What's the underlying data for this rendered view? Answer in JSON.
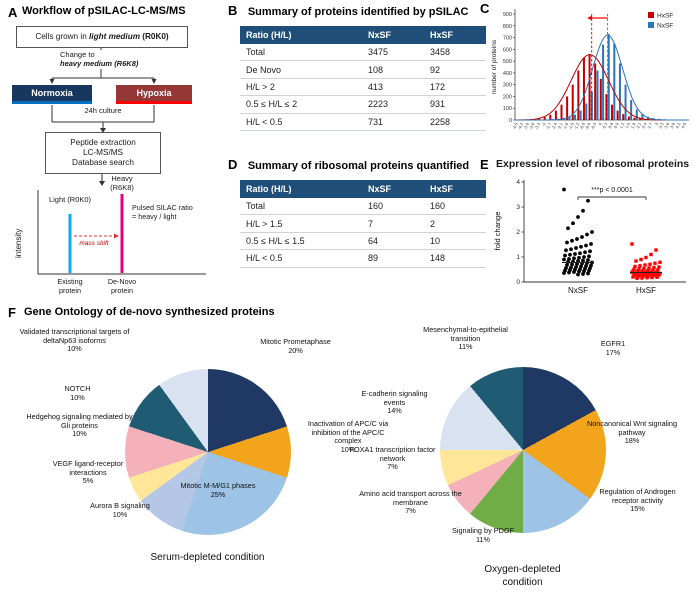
{
  "panels": {
    "a": {
      "tag": "A",
      "title": "Workflow of pSILAC-LC-MS/MS",
      "cells_pre": "Cells grown in ",
      "cells_em": "light medium",
      "cells_post": " (R0K0)",
      "change_line1": "Change to",
      "change_line2": "heavy medium (R6K8)",
      "normoxia": "Normoxia",
      "hypoxia": "Hypoxia",
      "culture": "24h culture",
      "peptide_line1": "Peptide extraction",
      "peptide_line2": "LC-MS/MS",
      "peptide_line3": "Database search",
      "intensity": "intensity",
      "light_peak": "Light (R0K0)",
      "heavy_peak": "Heavy (R6K8)",
      "ratio_line1": "Pulsed SILAC ratio",
      "ratio_line2": "= heavy / light",
      "mass_shift": "mass shift",
      "existing": "Existing protein",
      "denovo": "De-Novo protein"
    },
    "b": {
      "tag": "B",
      "title": "Summary of proteins identified by pSILAC",
      "table": {
        "headers": [
          "Ratio (H/L)",
          "NxSF",
          "HxSF"
        ],
        "rows": [
          [
            "Total",
            "3475",
            "3458"
          ],
          [
            "De Novo",
            "108",
            "92"
          ],
          [
            "H/L > 2",
            "413",
            "172"
          ],
          [
            "0.5 ≤ H/L ≤ 2",
            "2223",
            "931"
          ],
          [
            "H/L < 0.5",
            "731",
            "2258"
          ]
        ]
      }
    },
    "c": {
      "tag": "C"
    },
    "d": {
      "tag": "D",
      "title": "Summary of ribosomal proteins quantified",
      "table": {
        "headers": [
          "Ratio (H/L)",
          "NxSF",
          "HxSF"
        ],
        "rows": [
          [
            "Total",
            "160",
            "160"
          ],
          [
            "H/L > 1.5",
            "7",
            "2"
          ],
          [
            "0.5 ≤ H/L ≤ 1.5",
            "64",
            "10"
          ],
          [
            "H/L < 0.5",
            "89",
            "148"
          ]
        ]
      }
    },
    "e": {
      "tag": "E",
      "title": "Expression level of ribosomal proteins"
    },
    "f": {
      "tag": "F",
      "title": "Gene Ontology of de-novo synthesized proteins"
    }
  },
  "chart_data": [
    {
      "id": "panel-c-histogram",
      "type": "bar",
      "ylabel": "number of proteins",
      "ylim": [
        0,
        900
      ],
      "ytick_step": 100,
      "categories": [
        "-4.5",
        "-4.2",
        "-3.9",
        "-3.6",
        "-3.3",
        "-3",
        "-2.7",
        "-2.4",
        "-2.1",
        "-1.8",
        "-1.5",
        "-1.2",
        "-0.9",
        "-0.6",
        "-0.3",
        "0",
        "0.3",
        "0.6",
        "0.9",
        "1.2",
        "1.5",
        "1.8",
        "2.1",
        "2.4",
        "2.7",
        "3",
        "3.3",
        "3.6",
        "3.9",
        "4.2",
        "4.5"
      ],
      "series": [
        {
          "name": "HxSF",
          "color": "#c00000",
          "values": [
            2,
            3,
            5,
            8,
            14,
            25,
            45,
            80,
            130,
            200,
            300,
            420,
            530,
            560,
            480,
            350,
            220,
            130,
            80,
            50,
            30,
            20,
            12,
            8,
            5,
            4,
            3,
            2,
            2,
            1,
            1
          ]
        },
        {
          "name": "NxSF",
          "color": "#2e75b6",
          "values": [
            1,
            1,
            2,
            2,
            3,
            5,
            8,
            12,
            18,
            28,
            45,
            80,
            140,
            240,
            420,
            640,
            730,
            650,
            480,
            300,
            170,
            90,
            50,
            28,
            16,
            10,
            6,
            4,
            3,
            2,
            1
          ]
        }
      ],
      "fits": [
        {
          "name": "HxSF",
          "color": "#c00000",
          "mean": -0.65,
          "sd": 1.0,
          "peak": 555
        },
        {
          "name": "NxSF",
          "color": "#2e75b6",
          "mean": 0.3,
          "sd": 0.8,
          "peak": 720
        }
      ],
      "annotations": {
        "dashed_lines": [
          {
            "x": -0.55,
            "color": "#c00000"
          },
          {
            "x": 0.3,
            "color": "#2e75b6"
          }
        ],
        "arrow": {
          "from_x": 0.3,
          "to_x": -0.8,
          "color": "#ff0000"
        }
      }
    },
    {
      "id": "panel-e-scatter",
      "type": "scatter",
      "title": "Expression level of ribosomal proteins",
      "ylabel": "fold change",
      "ylim": [
        0,
        4
      ],
      "yticks": [
        0,
        1,
        2,
        3,
        4
      ],
      "categories": [
        "NxSF",
        "HxSF"
      ],
      "significance": "***p < 0.0001",
      "series": [
        {
          "name": "NxSF",
          "color": "#000000",
          "marker": "circle",
          "mean": 0.78,
          "values": [
            3.7,
            3.25,
            2.85,
            2.6,
            2.35,
            2.15,
            2.0,
            1.9,
            1.8,
            1.72,
            1.65,
            1.58,
            1.52,
            1.46,
            1.41,
            1.36,
            1.31,
            1.27,
            1.23,
            1.19,
            1.15,
            1.12,
            1.09,
            1.06,
            1.03,
            1.0,
            0.97,
            0.95,
            0.92,
            0.9,
            0.88,
            0.86,
            0.84,
            0.82,
            0.8,
            0.78,
            0.76,
            0.74,
            0.72,
            0.7,
            0.68,
            0.66,
            0.64,
            0.62,
            0.6,
            0.58,
            0.56,
            0.55,
            0.53,
            0.51,
            0.5,
            0.48,
            0.46,
            0.45,
            0.43,
            0.42,
            0.4,
            0.38,
            0.36,
            0.34,
            0.32,
            0.3
          ]
        },
        {
          "name": "HxSF",
          "color": "#ff0000",
          "marker": "square",
          "mean": 0.38,
          "values": [
            1.52,
            1.28,
            1.1,
            0.98,
            0.9,
            0.84,
            0.79,
            0.75,
            0.71,
            0.68,
            0.65,
            0.62,
            0.6,
            0.58,
            0.56,
            0.54,
            0.52,
            0.51,
            0.49,
            0.48,
            0.47,
            0.46,
            0.45,
            0.44,
            0.43,
            0.42,
            0.41,
            0.4,
            0.39,
            0.38,
            0.37,
            0.37,
            0.36,
            0.35,
            0.34,
            0.34,
            0.33,
            0.32,
            0.31,
            0.31,
            0.3,
            0.29,
            0.28,
            0.28,
            0.27,
            0.26,
            0.25,
            0.25,
            0.24,
            0.23,
            0.22,
            0.21,
            0.2,
            0.19,
            0.18,
            0.17,
            0.16,
            0.15
          ]
        }
      ]
    },
    {
      "id": "pie-serum",
      "type": "pie",
      "title": "Serum-depleted condition",
      "slices": [
        {
          "label": "Mitotic Prometaphase",
          "pct": 20,
          "pct_label": "20%",
          "color": "#1f3864"
        },
        {
          "label": "Inactivation of APC/C via inhibition of the APC/C complex",
          "pct": 10,
          "pct_label": "10%",
          "color": "#f2a51c"
        },
        {
          "label": "Mitotic M-M/G1 phases",
          "pct": 25,
          "pct_label": "25%",
          "color": "#9dc3e6"
        },
        {
          "label": "Aurora B signaling",
          "pct": 10,
          "pct_label": "10%",
          "color": "#b4c7e7"
        },
        {
          "label": "VEGF ligand-receptor interactions",
          "pct": 5,
          "pct_label": "5%",
          "color": "#ffe699"
        },
        {
          "label": "Hedgehog signaling mediated by Gli proteins",
          "pct": 10,
          "pct_label": "10%",
          "color": "#f4b1ba"
        },
        {
          "label": "NOTCH",
          "pct": 10,
          "pct_label": "10%",
          "color": "#1f5c73"
        },
        {
          "label": "Validated transcriptional targets of deltaNp63 isoforms",
          "pct": 10,
          "pct_label": "10%",
          "color": "#d9e2f0"
        }
      ]
    },
    {
      "id": "pie-oxygen",
      "type": "pie",
      "title": "Oxygen-depleted condition",
      "slices": [
        {
          "label": "EGFR1",
          "pct": 17,
          "pct_label": "17%",
          "color": "#1f3864"
        },
        {
          "label": "Noncanonical Wnt signaling pathway",
          "pct": 18,
          "pct_label": "18%",
          "color": "#f2a51c"
        },
        {
          "label": "Regulation of Androgen receptor activity",
          "pct": 15,
          "pct_label": "15%",
          "color": "#9dc3e6"
        },
        {
          "label": "Signaling by PDGF",
          "pct": 11,
          "pct_label": "11%",
          "color": "#70ad47"
        },
        {
          "label": "Amino acid transport across the membrane",
          "pct": 7,
          "pct_label": "7%",
          "color": "#f4b1ba"
        },
        {
          "label": "FOXA1 transcription factor network",
          "pct": 7,
          "pct_label": "7%",
          "color": "#ffe699"
        },
        {
          "label": "E-cadherin signaling events",
          "pct": 14,
          "pct_label": "14%",
          "color": "#d9e2f0"
        },
        {
          "label": "Mesenchymal-to-epithelial transition",
          "pct": 11,
          "pct_label": "11%",
          "color": "#1f5c73"
        }
      ]
    }
  ]
}
